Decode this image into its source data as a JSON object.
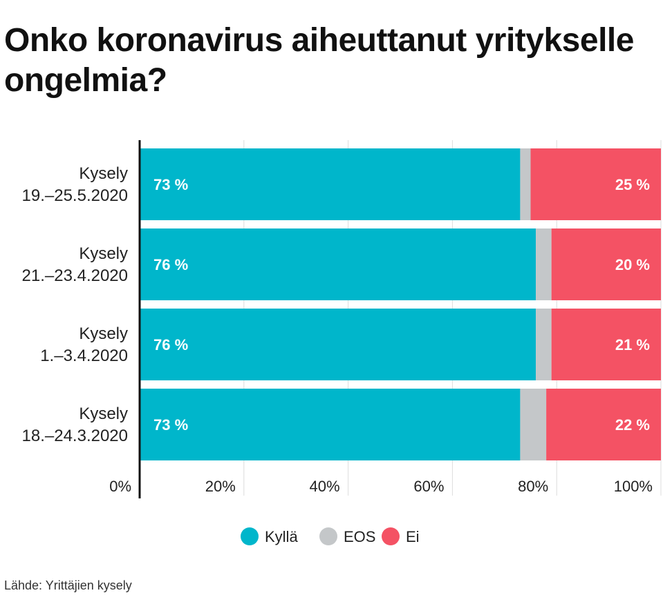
{
  "chart_data": {
    "type": "bar",
    "orientation": "horizontal",
    "stacked": true,
    "title": "Onko koronavirus aiheuttanut yritykselle ongelmia?",
    "categories": [
      [
        "Kysely",
        "19.–25.5.2020"
      ],
      [
        "Kysely",
        "21.–23.4.2020"
      ],
      [
        "Kysely",
        "1.–3.4.2020"
      ],
      [
        "Kysely",
        "18.–24.3.2020"
      ]
    ],
    "series": [
      {
        "name": "Kyllä",
        "color": "#00b6cb",
        "values": [
          73,
          76,
          76,
          73
        ],
        "labels": [
          "73 %",
          "76 %",
          "76 %",
          "73 %"
        ]
      },
      {
        "name": "EOS",
        "color": "#c4c7c9",
        "values": [
          2,
          3,
          3,
          5
        ]
      },
      {
        "name": "Ei",
        "color": "#f45264",
        "values": [
          25,
          20,
          21,
          22
        ],
        "labels": [
          "25 %",
          "20 %",
          "21 %",
          "22 %"
        ]
      }
    ],
    "xlim": [
      0,
      100
    ],
    "ticks": [
      0,
      20,
      40,
      60,
      80,
      100
    ],
    "tick_labels": [
      "0%",
      "20%",
      "40%",
      "60%",
      "80%",
      "100%"
    ],
    "grid": true,
    "legend": "bottom-center",
    "source": "Lähde: Yrittäjien kysely"
  }
}
